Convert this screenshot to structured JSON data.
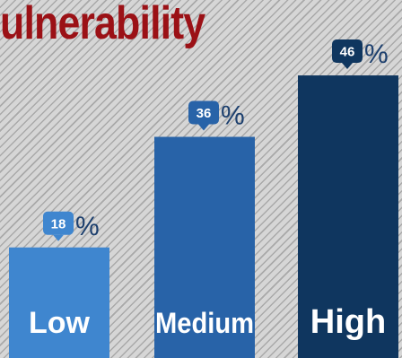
{
  "title": "ulnerability",
  "colors": {
    "title": "#9b1116",
    "bars": [
      "#3f86cf",
      "#2863a8",
      "#0f365f"
    ],
    "percent_sign": "#1c3f6e"
  },
  "chart_data": {
    "type": "bar",
    "title": "ulnerability",
    "categories": [
      "Low",
      "Medium",
      "High"
    ],
    "values": [
      18,
      36,
      46
    ],
    "value_suffix": "%",
    "ylim": [
      0,
      50
    ],
    "grid": false,
    "legend": "none"
  }
}
